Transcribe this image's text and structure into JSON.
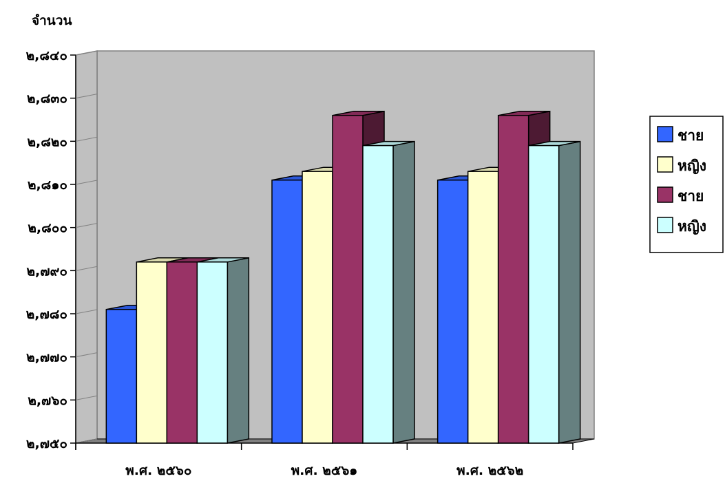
{
  "chart_data": {
    "type": "bar",
    "ylabel": "จำนวน",
    "xlabel": "",
    "title": "",
    "categories": [
      "พ.ศ. ๒๕๖๐",
      "พ.ศ. ๒๕๖๑",
      "พ.ศ. ๒๕๖๒"
    ],
    "series": [
      {
        "name": "ชาย",
        "values": [
          2781,
          2811,
          2811
        ],
        "color": "#3366FF"
      },
      {
        "name": "หญิง",
        "values": [
          2792,
          2813,
          2813
        ],
        "color": "#FFFFCC"
      },
      {
        "name": "ชาย",
        "values": [
          2792,
          2826,
          2826
        ],
        "color": "#993366"
      },
      {
        "name": "หญิง",
        "values": [
          2792,
          2819,
          2819
        ],
        "color": "#CCFFFF"
      }
    ],
    "ylim": [
      2750,
      2840
    ],
    "yticks": [
      {
        "value": 2750,
        "label": "๒,๗๕๐"
      },
      {
        "value": 2760,
        "label": "๒,๗๖๐"
      },
      {
        "value": 2770,
        "label": "๒,๗๗๐"
      },
      {
        "value": 2780,
        "label": "๒,๗๘๐"
      },
      {
        "value": 2790,
        "label": "๒,๗๙๐"
      },
      {
        "value": 2800,
        "label": "๒,๘๐๐"
      },
      {
        "value": 2810,
        "label": "๒,๘๑๐"
      },
      {
        "value": 2820,
        "label": "๒,๘๒๐"
      },
      {
        "value": 2830,
        "label": "๒,๘๓๐"
      },
      {
        "value": 2840,
        "label": "๒,๘๔๐"
      }
    ],
    "grid": false,
    "legend_position": "right",
    "wall_color": "#C0C0C0",
    "floor_color": "#808080"
  }
}
